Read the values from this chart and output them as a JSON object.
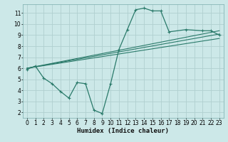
{
  "xlabel": "Humidex (Indice chaleur)",
  "bg_color": "#cce8e8",
  "grid_color": "#b0d0d0",
  "line_color": "#2a7a6a",
  "xlim": [
    -0.5,
    23.5
  ],
  "ylim": [
    1.5,
    11.8
  ],
  "xticks": [
    0,
    1,
    2,
    3,
    4,
    5,
    6,
    7,
    8,
    9,
    10,
    11,
    12,
    13,
    14,
    15,
    16,
    17,
    18,
    19,
    20,
    21,
    22,
    23
  ],
  "yticks": [
    2,
    3,
    4,
    5,
    6,
    7,
    8,
    9,
    10,
    11
  ],
  "main_series": {
    "x": [
      0,
      1,
      2,
      3,
      4,
      5,
      6,
      7,
      8,
      9,
      10,
      11,
      12,
      13,
      14,
      15,
      16,
      17,
      19,
      21,
      22,
      23
    ],
    "y": [
      5.9,
      6.2,
      5.1,
      4.6,
      3.9,
      3.3,
      4.7,
      4.6,
      2.2,
      1.9,
      4.6,
      7.7,
      9.5,
      11.3,
      11.45,
      11.2,
      11.2,
      9.3,
      9.5,
      9.4,
      9.4,
      9.0
    ]
  },
  "trend_lines": [
    {
      "x": [
        0,
        23
      ],
      "y": [
        6.0,
        9.4
      ]
    },
    {
      "x": [
        0,
        23
      ],
      "y": [
        6.0,
        8.7
      ]
    },
    {
      "x": [
        0,
        23
      ],
      "y": [
        6.0,
        9.1
      ]
    }
  ],
  "xlabel_fontsize": 6.5,
  "tick_fontsize": 5.5
}
